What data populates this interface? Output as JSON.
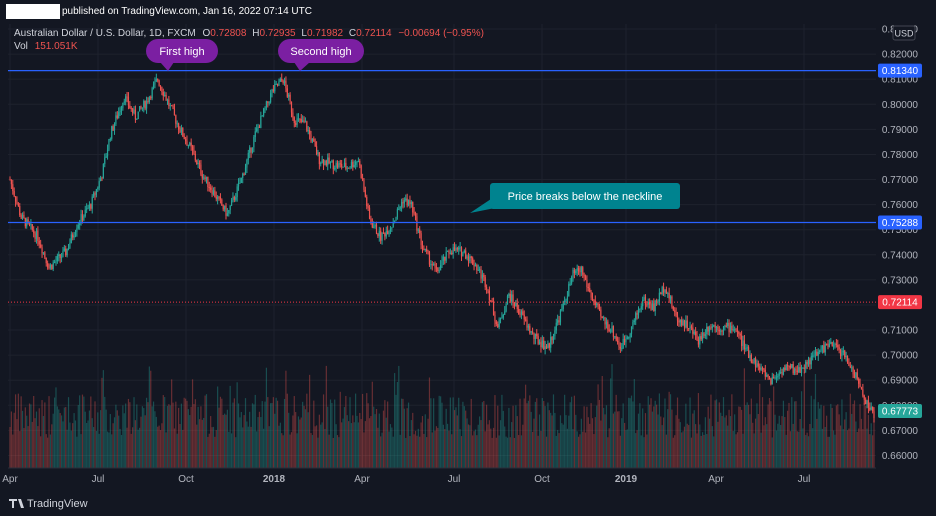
{
  "header": {
    "published": "published on TradingView.com, Jan 16, 2022 07:14 UTC",
    "symbol": "Australian Dollar / U.S. Dollar, 1D, FXCM",
    "o_label": "O",
    "o_value": "0.72808",
    "h_label": "H",
    "h_value": "0.72935",
    "l_label": "L",
    "l_value": "0.71982",
    "c_label": "C",
    "c_value": "0.72114",
    "change": "−0.00694 (−0.95%)",
    "vol_label": "Vol",
    "vol_value": "151.051K"
  },
  "currency": "USD",
  "footer": {
    "logo_text": "TradingView"
  },
  "colors": {
    "background": "#131722",
    "up": "#26a69a",
    "down": "#ef5350",
    "hline": "#2962ff",
    "current": "#f23645",
    "bubble": "#7b1fa2",
    "teal_bubble": "#00838f"
  },
  "chart_data": {
    "type": "candlestick",
    "ylim": [
      0.655,
      0.832
    ],
    "y_ticks": [
      "0.83000",
      "0.82000",
      "0.81000",
      "0.80000",
      "0.79000",
      "0.78000",
      "0.77000",
      "0.76000",
      "0.75000",
      "0.74000",
      "0.73000",
      "0.72000",
      "0.71000",
      "0.70000",
      "0.69000",
      "0.68000",
      "0.67000",
      "0.66000"
    ],
    "x_ticks": [
      "Apr",
      "Jul",
      "Oct",
      "2018",
      "Apr",
      "Jul",
      "Oct",
      "2019",
      "Apr",
      "Jul"
    ],
    "price_path": [
      [
        0,
        0.77
      ],
      [
        8,
        0.755
      ],
      [
        20,
        0.747
      ],
      [
        28,
        0.735
      ],
      [
        40,
        0.741
      ],
      [
        48,
        0.752
      ],
      [
        58,
        0.76
      ],
      [
        66,
        0.772
      ],
      [
        72,
        0.788
      ],
      [
        82,
        0.803
      ],
      [
        90,
        0.795
      ],
      [
        98,
        0.801
      ],
      [
        106,
        0.81
      ],
      [
        114,
        0.8
      ],
      [
        122,
        0.79
      ],
      [
        130,
        0.782
      ],
      [
        138,
        0.772
      ],
      [
        146,
        0.765
      ],
      [
        156,
        0.756
      ],
      [
        166,
        0.77
      ],
      [
        176,
        0.788
      ],
      [
        188,
        0.805
      ],
      [
        196,
        0.81
      ],
      [
        204,
        0.794
      ],
      [
        212,
        0.792
      ],
      [
        222,
        0.778
      ],
      [
        232,
        0.776
      ],
      [
        242,
        0.775
      ],
      [
        250,
        0.778
      ],
      [
        258,
        0.754
      ],
      [
        266,
        0.747
      ],
      [
        274,
        0.752
      ],
      [
        282,
        0.762
      ],
      [
        288,
        0.76
      ],
      [
        296,
        0.743
      ],
      [
        306,
        0.733
      ],
      [
        316,
        0.742
      ],
      [
        326,
        0.741
      ],
      [
        334,
        0.736
      ],
      [
        342,
        0.728
      ],
      [
        350,
        0.711
      ],
      [
        358,
        0.724
      ],
      [
        366,
        0.717
      ],
      [
        376,
        0.707
      ],
      [
        386,
        0.703
      ],
      [
        396,
        0.718
      ],
      [
        404,
        0.732
      ],
      [
        410,
        0.734
      ],
      [
        416,
        0.725
      ],
      [
        424,
        0.715
      ],
      [
        432,
        0.71
      ],
      [
        438,
        0.703
      ],
      [
        446,
        0.711
      ],
      [
        454,
        0.722
      ],
      [
        462,
        0.719
      ],
      [
        470,
        0.728
      ],
      [
        478,
        0.715
      ],
      [
        486,
        0.712
      ],
      [
        494,
        0.706
      ],
      [
        502,
        0.712
      ],
      [
        510,
        0.711
      ],
      [
        520,
        0.711
      ],
      [
        528,
        0.702
      ],
      [
        536,
        0.696
      ],
      [
        546,
        0.69
      ],
      [
        556,
        0.695
      ],
      [
        566,
        0.694
      ],
      [
        576,
        0.699
      ],
      [
        586,
        0.704
      ],
      [
        594,
        0.703
      ],
      [
        602,
        0.697
      ],
      [
        608,
        0.69
      ],
      [
        614,
        0.682
      ],
      [
        620,
        0.676
      ]
    ],
    "price_lines": [
      {
        "label": "0.81340",
        "value": 0.8134
      },
      {
        "label": "0.75288",
        "value": 0.75288
      }
    ],
    "current_price": {
      "label": "0.72114",
      "value": 0.72114
    },
    "last_close": {
      "label": "0.67773",
      "value": 0.67773
    },
    "annotations": [
      {
        "text": "First high"
      },
      {
        "text": "Second high"
      },
      {
        "text": "Price breaks below the neckline"
      }
    ]
  }
}
